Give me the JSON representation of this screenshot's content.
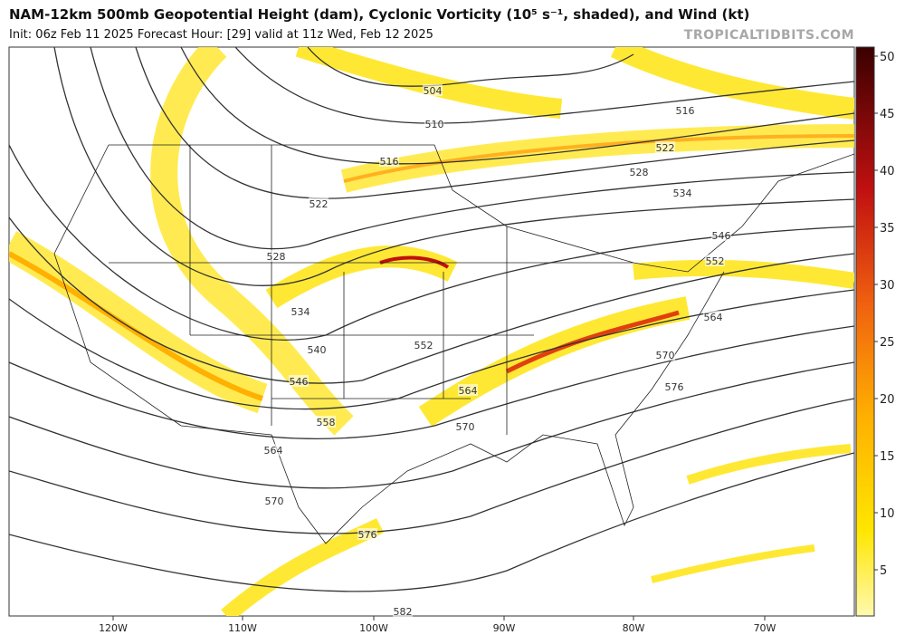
{
  "header": {
    "title": "NAM-12km 500mb Geopotential Height (dam), Cyclonic Vorticity (10⁵ s⁻¹, shaded), and Wind (kt)",
    "subtitle": "Init: 06z Feb 11 2025   Forecast Hour: [29]   valid at 11z Wed, Feb 12 2025",
    "watermark": "TROPICALTIDBITS.COM"
  },
  "map": {
    "longitude_labels": [
      "120W",
      "110W",
      "100W",
      "90W",
      "80W",
      "70W"
    ],
    "contour_labels": [
      504,
      510,
      516,
      516,
      522,
      522,
      528,
      528,
      534,
      534,
      540,
      546,
      546,
      552,
      552,
      558,
      564,
      564,
      564,
      570,
      570,
      570,
      576,
      576,
      582
    ]
  },
  "colorbar": {
    "ticks": [
      5,
      10,
      15,
      20,
      25,
      30,
      35,
      40,
      45,
      50
    ]
  }
}
